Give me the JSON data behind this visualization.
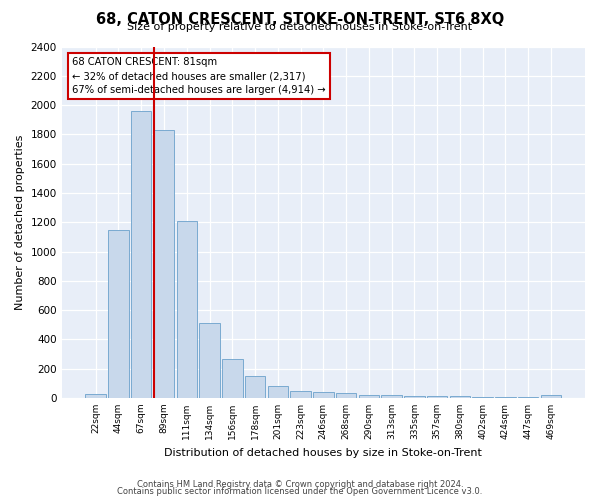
{
  "title": "68, CATON CRESCENT, STOKE-ON-TRENT, ST6 8XQ",
  "subtitle": "Size of property relative to detached houses in Stoke-on-Trent",
  "xlabel": "Distribution of detached houses by size in Stoke-on-Trent",
  "ylabel": "Number of detached properties",
  "bar_labels": [
    "22sqm",
    "44sqm",
    "67sqm",
    "89sqm",
    "111sqm",
    "134sqm",
    "156sqm",
    "178sqm",
    "201sqm",
    "223sqm",
    "246sqm",
    "268sqm",
    "290sqm",
    "313sqm",
    "335sqm",
    "357sqm",
    "380sqm",
    "402sqm",
    "424sqm",
    "447sqm",
    "469sqm"
  ],
  "bar_values": [
    30,
    1150,
    1960,
    1830,
    1210,
    510,
    265,
    150,
    80,
    45,
    38,
    37,
    20,
    22,
    15,
    12,
    10,
    8,
    6,
    5,
    20
  ],
  "bar_color": "#c8d8eb",
  "bar_edge_color": "#7aaad0",
  "annotation_box_text": "68 CATON CRESCENT: 81sqm\n← 32% of detached houses are smaller (2,317)\n67% of semi-detached houses are larger (4,914) →",
  "red_line_color": "#cc0000",
  "ylim": [
    0,
    2400
  ],
  "yticks": [
    0,
    200,
    400,
    600,
    800,
    1000,
    1200,
    1400,
    1600,
    1800,
    2000,
    2200,
    2400
  ],
  "footer_line1": "Contains HM Land Registry data © Crown copyright and database right 2024.",
  "footer_line2": "Contains public sector information licensed under the Open Government Licence v3.0.",
  "fig_bg_color": "#ffffff",
  "plot_bg_color": "#e8eef8",
  "grid_color": "#ffffff"
}
